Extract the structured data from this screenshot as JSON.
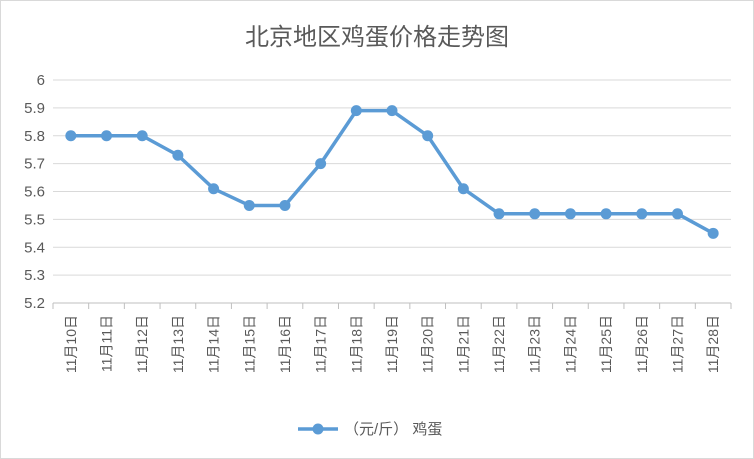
{
  "chart_data": {
    "type": "line",
    "title": "北京地区鸡蛋价格走势图",
    "categories": [
      "11月10日",
      "11月11日",
      "11月12日",
      "11月13日",
      "11月14日",
      "11月15日",
      "11月16日",
      "11月17日",
      "11月18日",
      "11月19日",
      "11月20日",
      "11月21日",
      "11月22日",
      "11月23日",
      "11月24日",
      "11月25日",
      "11月26日",
      "11月27日",
      "11月28日"
    ],
    "series": [
      {
        "name": "（元/斤） 鸡蛋",
        "values": [
          5.8,
          5.8,
          5.8,
          5.73,
          5.61,
          5.55,
          5.55,
          5.7,
          5.89,
          5.89,
          5.8,
          5.61,
          5.52,
          5.52,
          5.52,
          5.52,
          5.52,
          5.52,
          5.45
        ]
      }
    ],
    "y_ticks": [
      "5.2",
      "5.3",
      "5.4",
      "5.5",
      "5.6",
      "5.7",
      "5.8",
      "5.9",
      "6"
    ],
    "ylim": [
      5.2,
      6.0
    ],
    "grid": true,
    "legend_position": "bottom",
    "series_color": "#5b9bd5"
  }
}
